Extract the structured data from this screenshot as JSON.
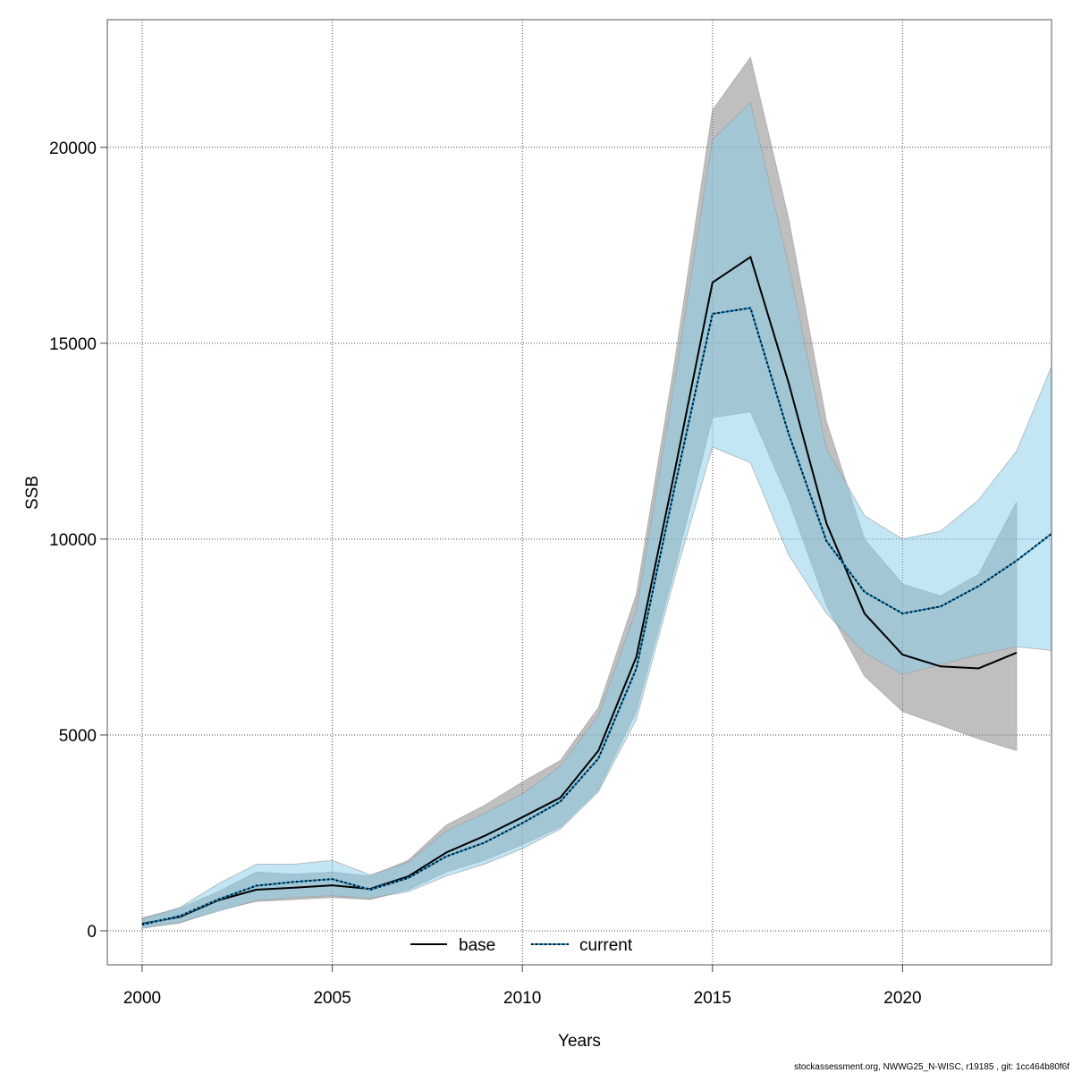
{
  "chart_data": {
    "type": "line",
    "title": "",
    "xlabel": "Years",
    "ylabel": "SSB",
    "xlim": [
      1999.1,
      2023.9
    ],
    "ylim": [
      -900,
      23250
    ],
    "xticks": [
      2000,
      2005,
      2010,
      2015,
      2020
    ],
    "yticks": [
      0,
      5000,
      10000,
      15000,
      20000
    ],
    "grid": true,
    "legend_placement": "bottom",
    "x": [
      2000,
      2001,
      2002,
      2003,
      2004,
      2005,
      2006,
      2007,
      2008,
      2009,
      2010,
      2011,
      2012,
      2013,
      2014,
      2015,
      2016,
      2017,
      2018,
      2019,
      2020,
      2021,
      2022,
      2023,
      2024
    ],
    "series": [
      {
        "name": "base",
        "color": "#000000",
        "line_style": "solid",
        "band_color": "#808080",
        "values": [
          180,
          360,
          780,
          1050,
          1100,
          1160,
          1070,
          1390,
          2000,
          2420,
          2900,
          3400,
          4600,
          7000,
          11700,
          16550,
          17200,
          14000,
          10400,
          8100,
          7050,
          6750,
          6700,
          7100,
          null
        ],
        "lower": [
          80,
          200,
          530,
          750,
          800,
          850,
          800,
          1050,
          1500,
          1800,
          2200,
          2650,
          3600,
          5600,
          9200,
          13100,
          13250,
          11000,
          8300,
          6500,
          5600,
          5250,
          4900,
          4600,
          null
        ],
        "upper": [
          330,
          580,
          1000,
          1500,
          1450,
          1500,
          1400,
          1800,
          2700,
          3200,
          3800,
          4350,
          5700,
          8600,
          14500,
          20950,
          22300,
          18200,
          13000,
          10000,
          8850,
          8550,
          9100,
          10950,
          null
        ]
      },
      {
        "name": "current",
        "color": "#000000",
        "line_style": "dotted",
        "band_color": "#87ceeb",
        "values": [
          160,
          380,
          800,
          1150,
          1250,
          1320,
          1050,
          1350,
          1900,
          2250,
          2750,
          3300,
          4400,
          6700,
          11300,
          15750,
          15900,
          12700,
          9950,
          8650,
          8100,
          8280,
          8800,
          9450,
          10200
        ],
        "lower": [
          60,
          220,
          500,
          770,
          850,
          900,
          830,
          1000,
          1400,
          1700,
          2100,
          2600,
          3550,
          5400,
          9000,
          12350,
          11950,
          9600,
          8100,
          7100,
          6550,
          6800,
          7050,
          7250,
          7150
        ],
        "upper": [
          300,
          600,
          1200,
          1700,
          1700,
          1800,
          1430,
          1750,
          2550,
          3000,
          3500,
          4200,
          5500,
          8200,
          14000,
          20200,
          21150,
          17000,
          12300,
          10600,
          10000,
          10200,
          11000,
          12250,
          14600
        ]
      }
    ]
  },
  "footer": "stockassessment.org, NWWG25_N-WISC, r19185 , git: 1cc464b80f6f"
}
